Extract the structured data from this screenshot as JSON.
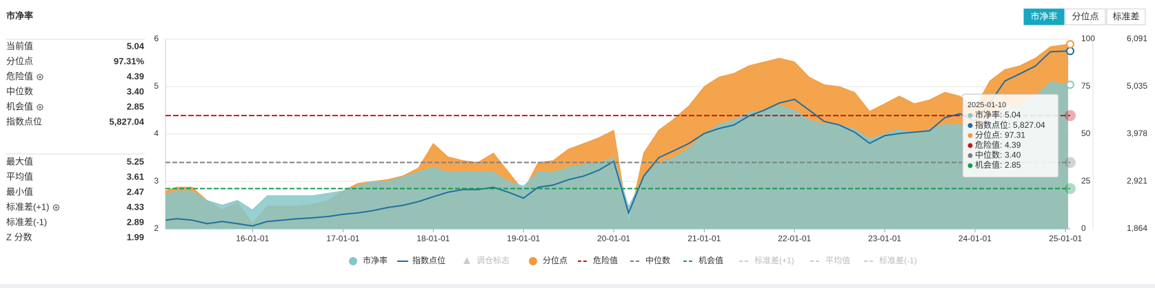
{
  "header": {
    "title": "市净率",
    "buttons": [
      "市净率",
      "分位点",
      "标准差"
    ]
  },
  "stats": {
    "group1": [
      {
        "label": "当前值",
        "value": "5.04"
      },
      {
        "label": "分位点",
        "value": "97.31%"
      },
      {
        "label": "危险值",
        "value": "4.39",
        "gear": true
      },
      {
        "label": "中位数",
        "value": "3.40"
      },
      {
        "label": "机会值",
        "value": "2.85",
        "gear": true
      },
      {
        "label": "指数点位",
        "value": "5,827.04"
      }
    ],
    "group2": [
      {
        "label": "最大值",
        "value": "5.25"
      },
      {
        "label": "平均值",
        "value": "3.61"
      },
      {
        "label": "最小值",
        "value": "2.47"
      },
      {
        "label": "标准差(+1)",
        "value": "4.33",
        "gear": true
      },
      {
        "label": "标准差(-1)",
        "value": "2.89"
      },
      {
        "label": "Z 分数",
        "value": "1.99"
      }
    ]
  },
  "chart_data": {
    "type": "area",
    "x": [
      "15-01-15",
      "15-03-01",
      "15-05-01",
      "15-07-01",
      "15-09-01",
      "15-11-01",
      "16-01-01",
      "16-03-01",
      "16-05-01",
      "16-07-01",
      "16-09-01",
      "16-11-01",
      "17-01-01",
      "17-03-01",
      "17-05-01",
      "17-07-01",
      "17-09-01",
      "17-11-01",
      "18-01-01",
      "18-03-01",
      "18-05-01",
      "18-07-01",
      "18-09-01",
      "18-11-01",
      "19-01-01",
      "19-03-01",
      "19-05-01",
      "19-07-01",
      "19-09-01",
      "19-11-01",
      "20-01-01",
      "20-03-01",
      "20-05-01",
      "20-07-01",
      "20-09-01",
      "20-11-01",
      "21-01-01",
      "21-03-01",
      "21-05-01",
      "21-07-01",
      "21-09-01",
      "21-11-01",
      "22-01-01",
      "22-03-01",
      "22-05-01",
      "22-07-01",
      "22-09-01",
      "22-11-01",
      "23-01-01",
      "23-03-01",
      "23-05-01",
      "23-07-01",
      "23-09-01",
      "23-11-01",
      "24-01-01",
      "24-03-01",
      "24-05-01",
      "24-07-01",
      "24-09-01",
      "24-11-01",
      "25-01-10"
    ],
    "xlim": [
      "15-01-14",
      "25-01-20"
    ],
    "xticks": [
      "16-01-01",
      "17-01-01",
      "18-01-01",
      "19-01-01",
      "20-01-01",
      "21-01-01",
      "22-01-01",
      "23-01-01",
      "24-01-01",
      "25-01-01"
    ],
    "ylim": [
      2,
      6
    ],
    "yticks": [
      2,
      3,
      4,
      5,
      6
    ],
    "y2lim": [
      0,
      100
    ],
    "y2ticks": [
      0,
      25,
      50,
      75,
      100
    ],
    "y3lim": [
      1864,
      6091
    ],
    "y3ticks": [
      {
        "value": 1864,
        "label": "1,864"
      },
      {
        "value": 2921,
        "label": "2,921"
      },
      {
        "value": 3978,
        "label": "3,978"
      },
      {
        "value": 5035,
        "label": "5,035"
      },
      {
        "value": 6091,
        "label": "6,091"
      }
    ],
    "grid": true,
    "series": [
      {
        "name": "市净率",
        "color": "#86c7c9",
        "style": "area",
        "values": [
          2.73,
          2.8,
          2.8,
          2.6,
          2.5,
          2.6,
          2.4,
          2.7,
          2.7,
          2.7,
          2.7,
          2.75,
          2.8,
          2.9,
          3.0,
          3.0,
          3.1,
          3.2,
          3.3,
          3.2,
          3.2,
          3.2,
          3.2,
          3.0,
          2.9,
          3.2,
          3.2,
          3.3,
          3.35,
          3.4,
          3.5,
          2.47,
          3.1,
          3.4,
          3.5,
          3.7,
          4.0,
          4.2,
          4.3,
          4.45,
          4.5,
          4.6,
          4.5,
          4.3,
          4.2,
          4.2,
          4.1,
          3.9,
          4.0,
          4.1,
          4.0,
          4.1,
          4.2,
          4.2,
          4.1,
          4.35,
          4.55,
          4.6,
          4.8,
          5.1,
          5.04
        ]
      },
      {
        "name": "指数点位",
        "color": "#1f6fa0",
        "style": "line",
        "axis": "y3",
        "values": [
          2060,
          2090,
          2060,
          1980,
          2030,
          1980,
          1930,
          2030,
          2060,
          2090,
          2110,
          2140,
          2190,
          2220,
          2270,
          2340,
          2390,
          2470,
          2580,
          2680,
          2740,
          2740,
          2790,
          2680,
          2550,
          2790,
          2840,
          2960,
          3040,
          3170,
          3370,
          2220,
          3040,
          3450,
          3610,
          3770,
          3990,
          4100,
          4180,
          4380,
          4510,
          4670,
          4750,
          4510,
          4260,
          4180,
          4020,
          3770,
          3940,
          3990,
          4020,
          4050,
          4340,
          4430,
          4260,
          4670,
          5160,
          5320,
          5490,
          5810,
          5827.04
        ]
      },
      {
        "name": "分位点",
        "color": "#f39a3a",
        "style": "area",
        "axis": "y2",
        "values": [
          20,
          22,
          22,
          15,
          10,
          14,
          3,
          12,
          12,
          12,
          13,
          15,
          20,
          24,
          25,
          26,
          28,
          32,
          45,
          38,
          36,
          35,
          40,
          30,
          20,
          35,
          36,
          42,
          45,
          48,
          52,
          3,
          40,
          52,
          58,
          65,
          75,
          80,
          82,
          86,
          88,
          90,
          88,
          80,
          76,
          75,
          72,
          62,
          66,
          70,
          66,
          68,
          72,
          70,
          64,
          78,
          84,
          86,
          90,
          96,
          97.31
        ]
      }
    ],
    "reference_lines": [
      {
        "name": "危险值",
        "value": 4.39,
        "color": "#c8161d"
      },
      {
        "name": "中位数",
        "value": 3.4,
        "color": "#7f7f7f"
      },
      {
        "name": "机会值",
        "value": 2.85,
        "color": "#1a9a50"
      }
    ],
    "hidden_legend": [
      "调仓标志",
      "标准差(+1)",
      "平均值",
      "标准差(-1)"
    ],
    "tooltip": {
      "date": "2025-01-10",
      "items": [
        {
          "name": "市净率",
          "value": "5.04",
          "color": "#86c7c9"
        },
        {
          "name": "指数点位",
          "value": "5,827.04",
          "color": "#1f6fa0"
        },
        {
          "name": "分位点",
          "value": "97.31",
          "color": "#f39a3a"
        },
        {
          "name": "危险值",
          "value": "4.39",
          "color": "#c8161d"
        },
        {
          "name": "中位数",
          "value": "3.40",
          "color": "#7f7f7f"
        },
        {
          "name": "机会值",
          "value": "2.85",
          "color": "#1a9a50"
        }
      ]
    }
  }
}
